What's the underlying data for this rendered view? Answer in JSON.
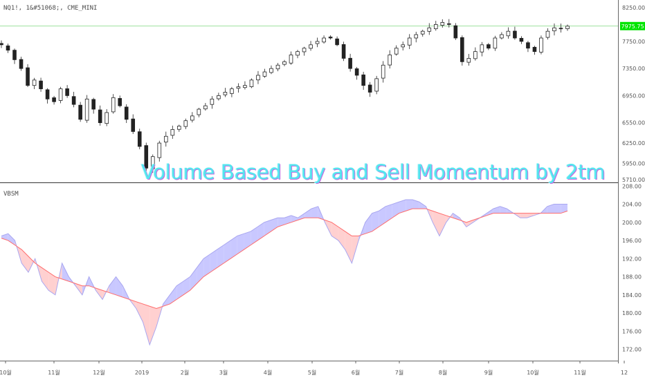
{
  "price_pane": {
    "header": "NQ1!, 1&#51068;, CME_MINI",
    "last_price_label": "7975.75",
    "last_price_color": "#00e400"
  },
  "indicator_pane": {
    "header": "VBSM"
  },
  "overlay_title": "Volume Based Buy and Sell Momentum by 2tm",
  "colors": {
    "up_fill": "#c9c8ff",
    "down_fill": "#ffd0d0",
    "ma_line": "#ff6b6b",
    "vbsm_line": "#a9a7f0",
    "candle": "#222222",
    "price_line": "#7ad67a"
  },
  "chart_data": [
    {
      "type": "candlestick",
      "symbol": "NQ1!",
      "interval": "1&#51068;",
      "exchange": "CME_MINI",
      "yticks": [
        8250,
        7750,
        7350,
        6950,
        6550,
        6250,
        5950,
        5710
      ],
      "ylim": [
        5690,
        8320
      ],
      "last_price": 7975.75,
      "xticks": [
        "10&#50900;",
        "11&#50900;",
        "12&#50900;",
        "2019",
        "2&#50900;",
        "3&#50900;",
        "4&#50900;",
        "5&#50900;",
        "6&#50900;",
        "7&#50900;",
        "8&#50900;",
        "9&#50900;",
        "10&#50900;",
        "11&#50900;",
        "12"
      ],
      "approx_close": [
        7700,
        7620,
        7480,
        7350,
        7100,
        7180,
        7050,
        6900,
        6860,
        7050,
        6950,
        6820,
        6600,
        6900,
        6750,
        6550,
        6700,
        6920,
        6800,
        6600,
        6420,
        6200,
        5880,
        6050,
        6250,
        6350,
        6450,
        6500,
        6580,
        6650,
        6750,
        6800,
        6900,
        6950,
        7000,
        7050,
        7080,
        7100,
        7180,
        7250,
        7300,
        7350,
        7400,
        7450,
        7550,
        7600,
        7650,
        7700,
        7750,
        7800,
        7800,
        7700,
        7500,
        7350,
        7250,
        7100,
        7000,
        7200,
        7400,
        7550,
        7650,
        7700,
        7800,
        7850,
        7900,
        7950,
        8000,
        8030,
        8000,
        7800,
        7450,
        7500,
        7600,
        7700,
        7650,
        7800,
        7850,
        7900,
        7800,
        7750,
        7650,
        7600,
        7800,
        7900,
        7950,
        7940,
        7975
      ]
    },
    {
      "type": "area",
      "name": "VBSM",
      "yticks": [
        208,
        204,
        200,
        196,
        192,
        188,
        184,
        180,
        176,
        172
      ],
      "ylim": [
        169.5,
        208.5
      ],
      "approx_vbsm": [
        197,
        197.5,
        196,
        191,
        189,
        192,
        187,
        185,
        184,
        191,
        188,
        186,
        184,
        188,
        185,
        183,
        186,
        188,
        186,
        183,
        181,
        178,
        173,
        177,
        182,
        184,
        186,
        187,
        188,
        190,
        192,
        193,
        194,
        195,
        196,
        197,
        197.5,
        198,
        199,
        200,
        200.5,
        201,
        201,
        201.5,
        201,
        202,
        203,
        203.5,
        200,
        197,
        196,
        194,
        191,
        196,
        200,
        202,
        202.5,
        203.5,
        204,
        204.5,
        205,
        205,
        204.5,
        203.5,
        200,
        197,
        200,
        202,
        201,
        199,
        200,
        201,
        202,
        203,
        203.5,
        203,
        202,
        201,
        201,
        201.5,
        202,
        203.5,
        204,
        204,
        204
      ],
      "approx_ma": [
        196.5,
        196,
        195,
        194,
        192.5,
        191,
        190,
        189,
        188,
        187.5,
        187,
        186.5,
        186,
        186,
        185.5,
        185,
        184.5,
        184,
        183.5,
        183,
        182.5,
        182,
        181.5,
        181,
        181.5,
        182,
        183,
        184,
        185,
        186.5,
        188,
        189,
        190,
        191,
        192,
        193,
        194,
        195,
        196,
        197,
        198,
        199,
        199.5,
        200,
        200.5,
        201,
        201,
        201,
        200.5,
        200,
        199,
        198,
        197,
        197,
        197.5,
        198,
        199,
        200,
        201,
        202,
        202.5,
        203,
        203,
        203,
        202.5,
        202,
        201.5,
        201,
        200.5,
        200,
        200.5,
        201,
        201.5,
        202,
        202,
        202,
        202,
        202,
        202,
        202,
        202,
        202,
        202,
        202,
        202.5,
        202.5,
        202.5
      ]
    }
  ]
}
